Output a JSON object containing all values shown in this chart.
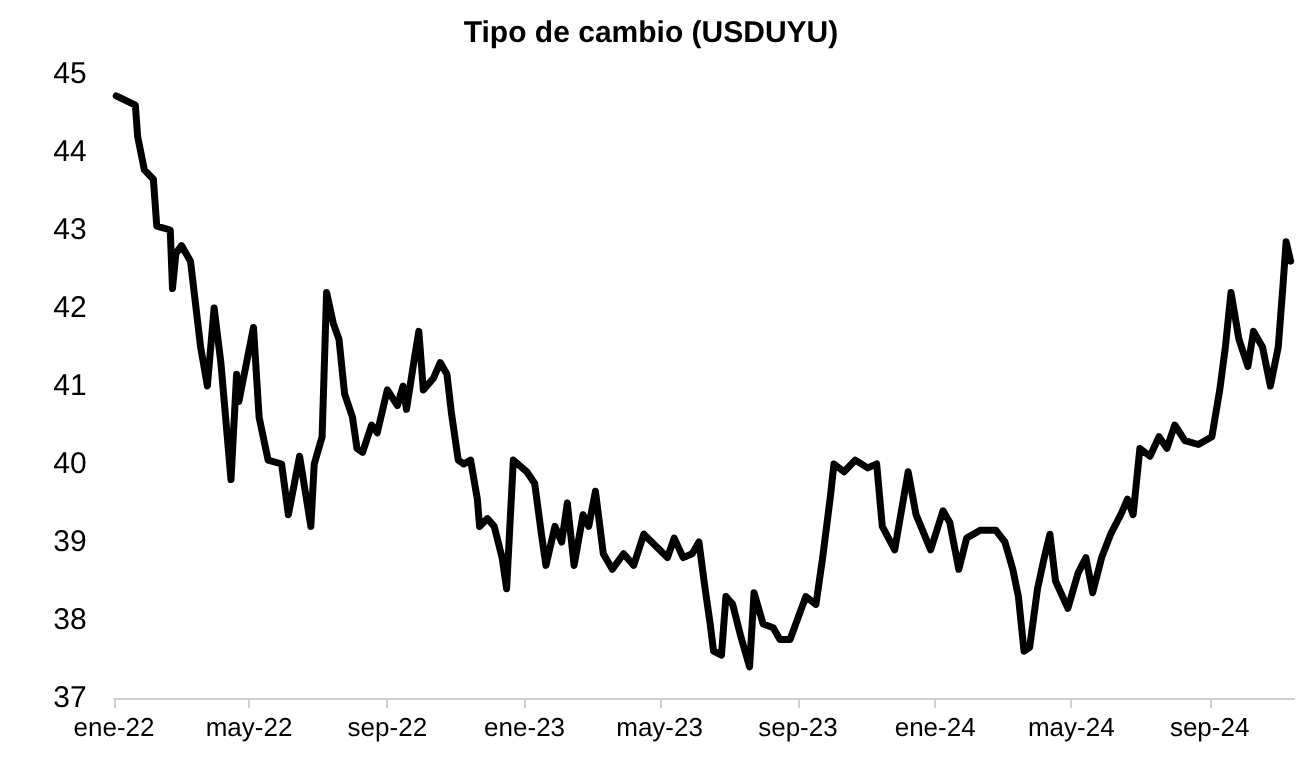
{
  "chart_data": {
    "type": "line",
    "title": "Tipo de cambio (USDUYU)",
    "x": [
      "2022-01-03",
      "2022-01-20",
      "2022-01-22",
      "2022-01-28",
      "2022-02-05",
      "2022-02-08",
      "2022-02-20",
      "2022-02-22",
      "2022-02-25",
      "2022-03-02",
      "2022-03-10",
      "2022-03-19",
      "2022-03-25",
      "2022-03-31",
      "2022-04-06",
      "2022-04-15",
      "2022-04-20",
      "2022-04-22",
      "2022-05-05",
      "2022-05-10",
      "2022-05-18",
      "2022-05-30",
      "2022-06-05",
      "2022-06-15",
      "2022-06-25",
      "2022-06-28",
      "2022-07-05",
      "2022-07-09",
      "2022-07-15",
      "2022-07-20",
      "2022-07-25",
      "2022-08-01",
      "2022-08-05",
      "2022-08-10",
      "2022-08-18",
      "2022-08-23",
      "2022-09-01",
      "2022-09-10",
      "2022-09-15",
      "2022-09-18",
      "2022-09-25",
      "2022-09-29",
      "2022-10-03",
      "2022-10-12",
      "2022-10-18",
      "2022-10-24",
      "2022-10-28",
      "2022-11-03",
      "2022-11-08",
      "2022-11-14",
      "2022-11-20",
      "2022-11-22",
      "2022-11-29",
      "2022-12-05",
      "2022-12-12",
      "2022-12-16",
      "2022-12-22",
      "2023-01-03",
      "2023-01-10",
      "2023-01-16",
      "2023-01-20",
      "2023-01-28",
      "2023-02-03",
      "2023-02-08",
      "2023-02-14",
      "2023-02-22",
      "2023-02-27",
      "2023-03-05",
      "2023-03-12",
      "2023-03-20",
      "2023-03-30",
      "2023-04-08",
      "2023-04-17",
      "2023-05-08",
      "2023-05-14",
      "2023-05-22",
      "2023-05-30",
      "2023-06-05",
      "2023-06-10",
      "2023-06-15",
      "2023-06-18",
      "2023-06-25",
      "2023-06-29",
      "2023-07-05",
      "2023-07-12",
      "2023-07-20",
      "2023-07-24",
      "2023-08-01",
      "2023-08-10",
      "2023-08-16",
      "2023-08-25",
      "2023-09-08",
      "2023-09-17",
      "2023-09-23",
      "2023-09-30",
      "2023-10-03",
      "2023-10-12",
      "2023-10-22",
      "2023-11-02",
      "2023-11-10",
      "2023-11-15",
      "2023-11-26",
      "2023-12-08",
      "2023-12-15",
      "2023-12-28",
      "2024-01-08",
      "2024-01-14",
      "2024-01-22",
      "2024-01-29",
      "2024-02-10",
      "2024-02-24",
      "2024-03-03",
      "2024-03-10",
      "2024-03-15",
      "2024-03-20",
      "2024-03-25",
      "2024-04-01",
      "2024-04-07",
      "2024-04-12",
      "2024-04-17",
      "2024-04-28",
      "2024-05-07",
      "2024-05-14",
      "2024-05-20",
      "2024-05-28",
      "2024-06-05",
      "2024-06-14",
      "2024-06-20",
      "2024-06-25",
      "2024-07-01",
      "2024-07-10",
      "2024-07-18",
      "2024-07-25",
      "2024-08-01",
      "2024-08-10",
      "2024-08-22",
      "2024-09-03",
      "2024-09-10",
      "2024-09-15",
      "2024-09-20",
      "2024-09-27",
      "2024-10-05",
      "2024-10-10",
      "2024-10-18",
      "2024-10-25",
      "2024-11-01",
      "2024-11-05",
      "2024-11-08",
      "2024-11-12"
    ],
    "series": [
      {
        "color": "#000000",
        "values": [
          44.72,
          44.6,
          44.2,
          43.77,
          43.65,
          43.05,
          43.0,
          42.25,
          42.7,
          42.8,
          42.6,
          41.5,
          41.0,
          42.0,
          41.3,
          39.8,
          41.15,
          40.8,
          41.75,
          40.6,
          40.05,
          40.0,
          39.35,
          40.1,
          39.2,
          40.0,
          40.35,
          42.2,
          41.8,
          41.6,
          40.9,
          40.6,
          40.2,
          40.15,
          40.5,
          40.4,
          40.95,
          40.75,
          41.0,
          40.7,
          41.35,
          41.7,
          40.95,
          41.1,
          41.3,
          41.15,
          40.65,
          40.05,
          40.0,
          40.05,
          39.55,
          39.2,
          39.3,
          39.2,
          38.8,
          38.4,
          40.05,
          39.9,
          39.75,
          39.1,
          38.7,
          39.2,
          39.0,
          39.5,
          38.7,
          39.35,
          39.2,
          39.65,
          38.85,
          38.65,
          38.85,
          38.7,
          39.1,
          38.8,
          39.05,
          38.8,
          38.85,
          39.0,
          38.45,
          37.95,
          37.6,
          37.55,
          38.3,
          38.2,
          37.8,
          37.4,
          38.35,
          37.95,
          37.9,
          37.75,
          37.75,
          38.3,
          38.2,
          38.8,
          39.6,
          40.0,
          39.9,
          40.05,
          39.95,
          40.0,
          39.2,
          38.9,
          39.9,
          39.35,
          38.9,
          39.4,
          39.25,
          38.65,
          39.05,
          39.15,
          39.15,
          39.0,
          38.65,
          38.3,
          37.6,
          37.65,
          38.4,
          38.8,
          39.1,
          38.5,
          38.15,
          38.6,
          38.8,
          38.35,
          38.8,
          39.1,
          39.35,
          39.55,
          39.35,
          40.2,
          40.1,
          40.35,
          40.2,
          40.5,
          40.3,
          40.25,
          40.35,
          40.95,
          41.5,
          42.2,
          41.6,
          41.25,
          41.7,
          41.5,
          41.0,
          41.5,
          42.25,
          42.85,
          42.6
        ]
      }
    ],
    "xlim": [
      "2022-01-01",
      "2024-11-15"
    ],
    "xticks": [
      {
        "value": "2022-01-01",
        "label": "ene-22"
      },
      {
        "value": "2022-05-01",
        "label": "may-22"
      },
      {
        "value": "2022-09-01",
        "label": "sep-22"
      },
      {
        "value": "2023-01-01",
        "label": "ene-23"
      },
      {
        "value": "2023-05-01",
        "label": "may-23"
      },
      {
        "value": "2023-09-01",
        "label": "sep-23"
      },
      {
        "value": "2024-01-01",
        "label": "ene-24"
      },
      {
        "value": "2024-05-01",
        "label": "may-24"
      },
      {
        "value": "2024-09-01",
        "label": "sep-24"
      }
    ],
    "ylim": [
      37,
      45
    ],
    "yticks": [
      37,
      38,
      39,
      40,
      41,
      42,
      43,
      44,
      45
    ],
    "grid": false,
    "marker": "none",
    "line_style": "solid"
  }
}
